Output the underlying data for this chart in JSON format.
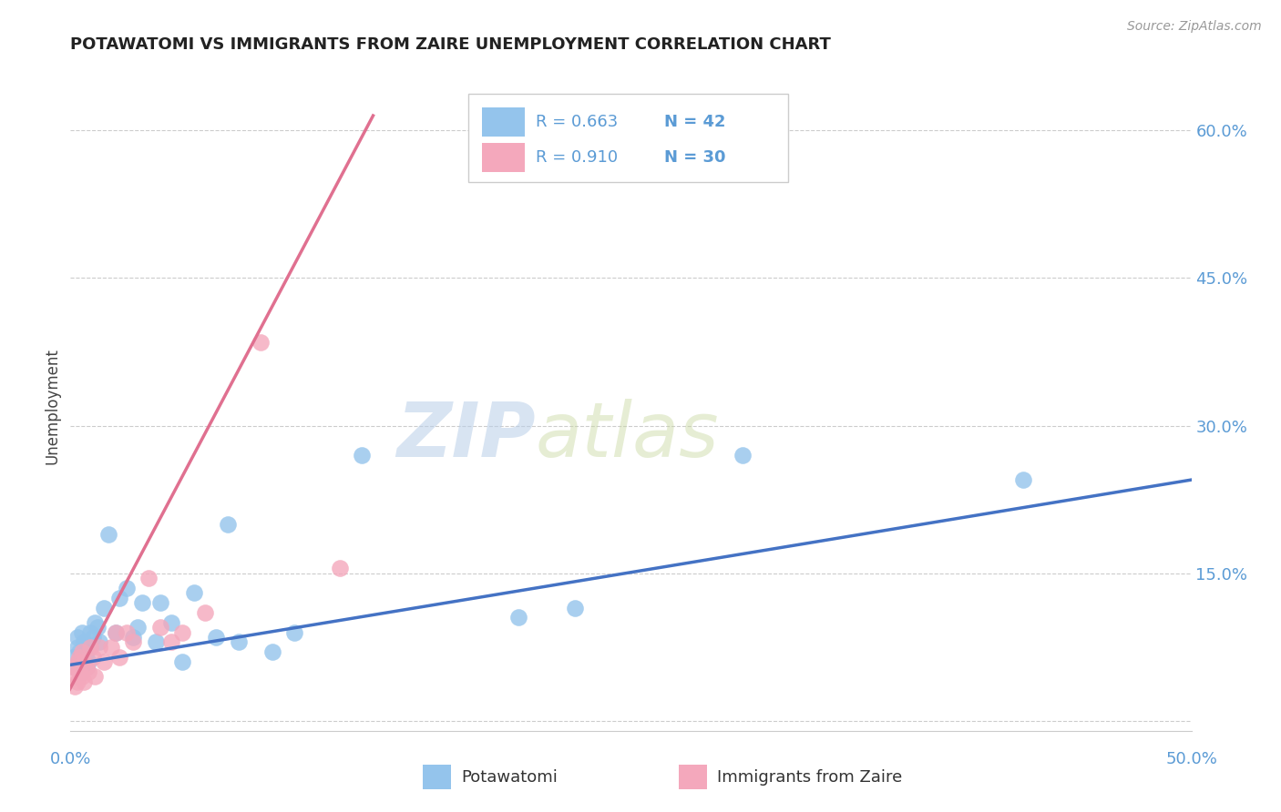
{
  "title": "POTAWATOMI VS IMMIGRANTS FROM ZAIRE UNEMPLOYMENT CORRELATION CHART",
  "source": "Source: ZipAtlas.com",
  "ylabel": "Unemployment",
  "yticks": [
    0.0,
    0.15,
    0.3,
    0.45,
    0.6
  ],
  "ytick_labels": [
    "",
    "15.0%",
    "30.0%",
    "45.0%",
    "60.0%"
  ],
  "xlim": [
    0.0,
    0.5
  ],
  "ylim": [
    -0.01,
    0.65
  ],
  "watermark_zip": "ZIP",
  "watermark_atlas": "atlas",
  "legend_r1": "R = 0.663",
  "legend_n1": "N = 42",
  "legend_r2": "R = 0.910",
  "legend_n2": "N = 30",
  "color_potawatomi": "#94C4EC",
  "color_zaire": "#F4A8BC",
  "color_line_potawatomi": "#4472C4",
  "color_line_zaire": "#E07090",
  "color_axis_labels": "#5B9BD5",
  "potawatomi_x": [
    0.001,
    0.002,
    0.003,
    0.003,
    0.004,
    0.004,
    0.005,
    0.005,
    0.006,
    0.006,
    0.007,
    0.007,
    0.008,
    0.009,
    0.009,
    0.01,
    0.011,
    0.012,
    0.013,
    0.015,
    0.017,
    0.02,
    0.022,
    0.025,
    0.028,
    0.03,
    0.032,
    0.038,
    0.04,
    0.045,
    0.05,
    0.055,
    0.065,
    0.07,
    0.075,
    0.09,
    0.1,
    0.13,
    0.2,
    0.225,
    0.3,
    0.425
  ],
  "potawatomi_y": [
    0.065,
    0.055,
    0.075,
    0.085,
    0.06,
    0.07,
    0.05,
    0.09,
    0.06,
    0.08,
    0.055,
    0.07,
    0.06,
    0.075,
    0.09,
    0.085,
    0.1,
    0.095,
    0.08,
    0.115,
    0.19,
    0.09,
    0.125,
    0.135,
    0.085,
    0.095,
    0.12,
    0.08,
    0.12,
    0.1,
    0.06,
    0.13,
    0.085,
    0.2,
    0.08,
    0.07,
    0.09,
    0.27,
    0.105,
    0.115,
    0.27,
    0.245
  ],
  "zaire_x": [
    0.001,
    0.002,
    0.002,
    0.003,
    0.003,
    0.004,
    0.004,
    0.005,
    0.005,
    0.006,
    0.006,
    0.007,
    0.008,
    0.009,
    0.01,
    0.011,
    0.013,
    0.015,
    0.018,
    0.02,
    0.022,
    0.025,
    0.028,
    0.035,
    0.04,
    0.045,
    0.05,
    0.06,
    0.085,
    0.12
  ],
  "zaire_y": [
    0.045,
    0.035,
    0.055,
    0.04,
    0.06,
    0.05,
    0.065,
    0.045,
    0.07,
    0.04,
    0.06,
    0.055,
    0.05,
    0.075,
    0.065,
    0.045,
    0.075,
    0.06,
    0.075,
    0.09,
    0.065,
    0.09,
    0.08,
    0.145,
    0.095,
    0.08,
    0.09,
    0.11,
    0.385,
    0.155
  ],
  "blue_line_x": [
    0.0,
    0.5
  ],
  "blue_line_y": [
    0.057,
    0.245
  ],
  "pink_line_x": [
    -0.002,
    0.135
  ],
  "pink_line_y": [
    0.025,
    0.615
  ]
}
